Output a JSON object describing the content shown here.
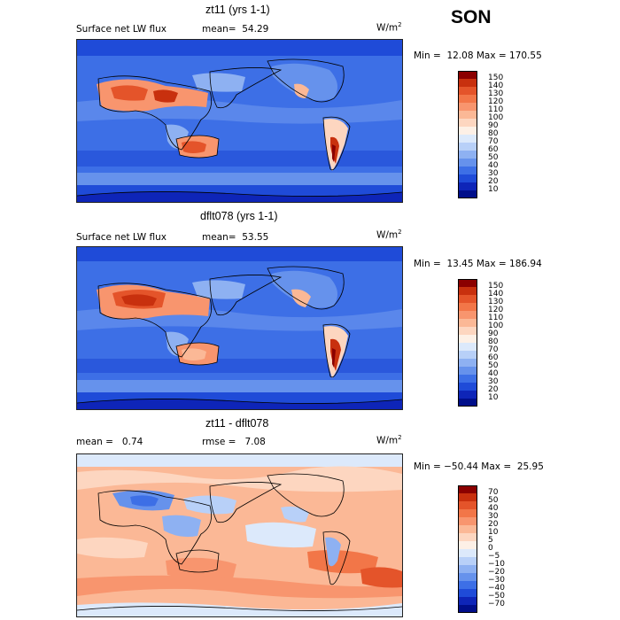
{
  "season": "SON",
  "units_base": "W/m",
  "units_exp": "2",
  "panels": [
    {
      "title": "zt11 (yrs 1-1)",
      "left_label": "Surface net LW flux",
      "stat_label": "mean=  54.29",
      "minmax": "Min =  12.08 Max = 170.55",
      "colorbar": [
        "150",
        "140",
        "130",
        "120",
        "110",
        "100",
        "90",
        "80",
        "70",
        "60",
        "50",
        "40",
        "30",
        "20",
        "10"
      ],
      "colors": [
        "#8b0000",
        "#c8300e",
        "#e4542a",
        "#f27648",
        "#f8956e",
        "#fbb896",
        "#fdd6c0",
        "#fdf0e6",
        "#dce9fb",
        "#b8d0f8",
        "#8eb1f2",
        "#6692ec",
        "#3d6fe6",
        "#1f4bd8",
        "#0e25b8",
        "#000e8a"
      ]
    },
    {
      "title": "dflt078 (yrs 1-1)",
      "left_label": "Surface net LW flux",
      "stat_label": "mean=  53.55",
      "minmax": "Min =  13.45 Max = 186.94",
      "colorbar": [
        "150",
        "140",
        "130",
        "120",
        "110",
        "100",
        "90",
        "80",
        "70",
        "60",
        "50",
        "40",
        "30",
        "20",
        "10"
      ],
      "colors": [
        "#8b0000",
        "#c8300e",
        "#e4542a",
        "#f27648",
        "#f8956e",
        "#fbb896",
        "#fdd6c0",
        "#fdf0e6",
        "#dce9fb",
        "#b8d0f8",
        "#8eb1f2",
        "#6692ec",
        "#3d6fe6",
        "#1f4bd8",
        "#0e25b8",
        "#000e8a"
      ]
    },
    {
      "title": "zt11 - dflt078",
      "left_label": "mean =   0.74",
      "stat_label": "rmse =   7.08",
      "minmax": "Min = −50.44 Max =  25.95",
      "colorbar": [
        "70",
        "50",
        "40",
        "30",
        "20",
        "10",
        "5",
        "0",
        "−5",
        "−10",
        "−20",
        "−30",
        "−40",
        "−50",
        "−70"
      ],
      "colors": [
        "#8b0000",
        "#c8300e",
        "#e4542a",
        "#f27648",
        "#f8956e",
        "#fbb896",
        "#fdd6c0",
        "#fdf0e6",
        "#dce9fb",
        "#b8d0f8",
        "#8eb1f2",
        "#6692ec",
        "#3d6fe6",
        "#1f4bd8",
        "#0e25b8",
        "#000e8a"
      ]
    }
  ]
}
